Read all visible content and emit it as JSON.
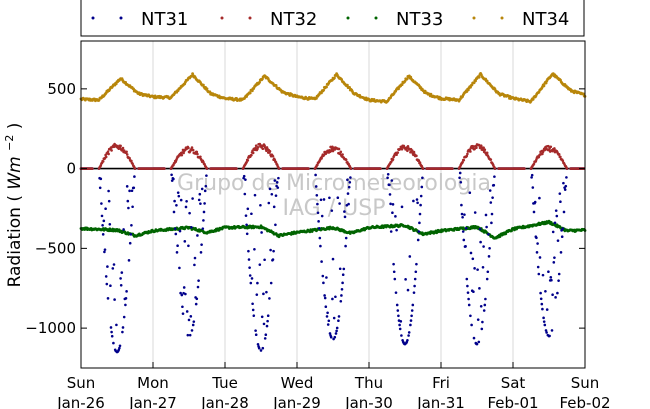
{
  "chart_data": {
    "type": "scatter",
    "ylabel": "Radiation",
    "ylabel_unit_base": "Wm",
    "ylabel_unit_exp": "−2",
    "ylim": [
      -1250,
      800
    ],
    "yticks": [
      {
        "value": 500,
        "label": "500"
      },
      {
        "value": 0,
        "label": "0"
      },
      {
        "value": -500,
        "label": "−500"
      },
      {
        "value": -1000,
        "label": "−1000"
      }
    ],
    "xlim": [
      "2014-01-26",
      "2014-02-02"
    ],
    "xticks": [
      {
        "day": "Sun",
        "date": "Jan-26"
      },
      {
        "day": "Mon",
        "date": "Jan-27"
      },
      {
        "day": "Tue",
        "date": "Jan-28"
      },
      {
        "day": "Wed",
        "date": "Jan-29"
      },
      {
        "day": "Thu",
        "date": "Jan-30"
      },
      {
        "day": "Fri",
        "date": "Jan-31"
      },
      {
        "day": "Sat",
        "date": "Feb-01"
      },
      {
        "day": "Sun",
        "date": "Feb-02"
      }
    ],
    "grid": "vertical",
    "zero_line": true,
    "legend": "top",
    "series": [
      {
        "name": "NT31",
        "color": "#00008b",
        "daily_peak": [
          -1150,
          -1050,
          -1140,
          -1070,
          -1100,
          -1100,
          -1050
        ],
        "night_value": 0
      },
      {
        "name": "NT32",
        "color": "#a52a2a",
        "daily_peak": [
          140,
          120,
          140,
          125,
          130,
          140,
          125
        ],
        "night_value": 0
      },
      {
        "name": "NT33",
        "color": "#006400",
        "daily_points": [
          {
            "day": 0.0,
            "value": -375
          },
          {
            "day": 0.5,
            "value": -385
          },
          {
            "day": 0.75,
            "value": -420
          },
          {
            "day": 1.0,
            "value": -390
          },
          {
            "day": 1.5,
            "value": -370
          },
          {
            "day": 1.75,
            "value": -400
          },
          {
            "day": 2.0,
            "value": -370
          },
          {
            "day": 2.5,
            "value": -365
          },
          {
            "day": 2.75,
            "value": -420
          },
          {
            "day": 3.0,
            "value": -400
          },
          {
            "day": 3.5,
            "value": -370
          },
          {
            "day": 3.75,
            "value": -405
          },
          {
            "day": 4.0,
            "value": -370
          },
          {
            "day": 4.5,
            "value": -355
          },
          {
            "day": 4.75,
            "value": -410
          },
          {
            "day": 5.0,
            "value": -390
          },
          {
            "day": 5.5,
            "value": -365
          },
          {
            "day": 5.75,
            "value": -435
          },
          {
            "day": 6.0,
            "value": -380
          },
          {
            "day": 6.5,
            "value": -335
          },
          {
            "day": 6.75,
            "value": -390
          },
          {
            "day": 7.0,
            "value": -385
          }
        ]
      },
      {
        "name": "NT34",
        "color": "#b8860b",
        "daily_points": [
          {
            "day": 0.0,
            "value": 435
          },
          {
            "day": 0.25,
            "value": 430
          },
          {
            "day": 0.55,
            "value": 565
          },
          {
            "day": 0.8,
            "value": 470
          },
          {
            "day": 1.0,
            "value": 450
          },
          {
            "day": 1.25,
            "value": 445
          },
          {
            "day": 1.55,
            "value": 590
          },
          {
            "day": 1.8,
            "value": 470
          },
          {
            "day": 2.0,
            "value": 440
          },
          {
            "day": 2.25,
            "value": 430
          },
          {
            "day": 2.55,
            "value": 580
          },
          {
            "day": 2.8,
            "value": 480
          },
          {
            "day": 3.0,
            "value": 450
          },
          {
            "day": 3.25,
            "value": 435
          },
          {
            "day": 3.55,
            "value": 590
          },
          {
            "day": 3.8,
            "value": 470
          },
          {
            "day": 4.0,
            "value": 430
          },
          {
            "day": 4.25,
            "value": 420
          },
          {
            "day": 4.55,
            "value": 580
          },
          {
            "day": 4.8,
            "value": 470
          },
          {
            "day": 5.0,
            "value": 440
          },
          {
            "day": 5.25,
            "value": 430
          },
          {
            "day": 5.55,
            "value": 590
          },
          {
            "day": 5.8,
            "value": 470
          },
          {
            "day": 6.0,
            "value": 440
          },
          {
            "day": 6.25,
            "value": 420
          },
          {
            "day": 6.55,
            "value": 595
          },
          {
            "day": 6.8,
            "value": 490
          },
          {
            "day": 7.0,
            "value": 460
          }
        ]
      }
    ],
    "watermark_lines": [
      "Grupo de Micrometeorologia",
      "IAG / USP"
    ]
  }
}
